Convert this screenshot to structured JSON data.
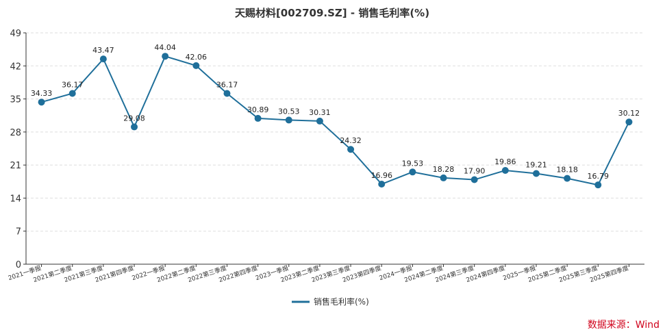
{
  "chart_data": {
    "type": "line",
    "title": "天赐材料[002709.SZ] - 销售毛利率(%)",
    "categories": [
      "2021一季报",
      "2021第二季度",
      "2021第三季度",
      "2021第四季度",
      "2022一季报",
      "2022第二季度",
      "2022第三季度",
      "2022第四季度",
      "2023一季报",
      "2023第二季度",
      "2023第三季度",
      "2023第四季度",
      "2024一季报",
      "2024第二季度",
      "2024第三季度",
      "2024第四季度",
      "2025一季报",
      "2025第二季度",
      "2025第三季度",
      "2025第四季度"
    ],
    "series": [
      {
        "name": "销售毛利率(%)",
        "color": "#1f6f9a",
        "values": [
          34.33,
          36.17,
          43.47,
          29.08,
          44.04,
          42.06,
          36.17,
          30.89,
          30.53,
          30.31,
          24.32,
          16.96,
          19.53,
          18.28,
          17.9,
          19.86,
          19.21,
          18.18,
          16.79,
          30.12
        ],
        "labels": [
          "34.33",
          "36.17",
          "43.47",
          "29.08",
          "44.04",
          "42.06",
          "36.17",
          "30.89",
          "30.53",
          "30.31",
          "24.32",
          "16.96",
          "19.53",
          "18.28",
          "17.90",
          "19.86",
          "19.21",
          "18.18",
          "16.79",
          "30.12"
        ]
      }
    ],
    "ylim": [
      0,
      49
    ],
    "yticks": [
      "0",
      "7",
      "14",
      "21",
      "28",
      "35",
      "42",
      "49"
    ],
    "grid": true,
    "legend": "bottom-center"
  },
  "source": "数据来源：Wind"
}
